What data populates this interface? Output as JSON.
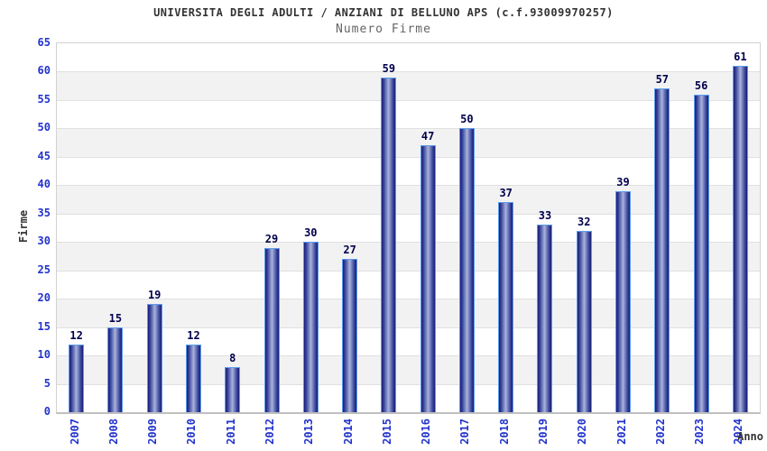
{
  "chart_data": {
    "type": "bar",
    "title": "UNIVERSITA DEGLI ADULTI / ANZIANI DI BELLUNO APS (c.f.93009970257)",
    "subtitle": "Numero Firme",
    "xlabel": "Anno",
    "ylabel": "Firme",
    "categories": [
      "2007",
      "2008",
      "2009",
      "2010",
      "2011",
      "2012",
      "2013",
      "2014",
      "2015",
      "2016",
      "2017",
      "2018",
      "2019",
      "2020",
      "2021",
      "2022",
      "2023",
      "2024"
    ],
    "values": [
      12,
      15,
      19,
      12,
      8,
      29,
      30,
      27,
      59,
      47,
      50,
      37,
      33,
      32,
      39,
      57,
      56,
      61
    ],
    "ylim": [
      0,
      65
    ],
    "ytick_step": 5,
    "grid": true,
    "legend": "none",
    "value_labels_shown": true,
    "colors": {
      "tick_label": "#2233cc",
      "value_label": "#00004d",
      "bar_edge_dark": "#1b1b78",
      "bar_mid": "#3d4a9e",
      "bar_center_light": "#aab3dc",
      "bar_border": "#5c9ded",
      "band_gray": "#f2f2f2",
      "gridline": "#e0e0e0",
      "title_color": "#333333",
      "subtitle_color": "#646464"
    }
  }
}
